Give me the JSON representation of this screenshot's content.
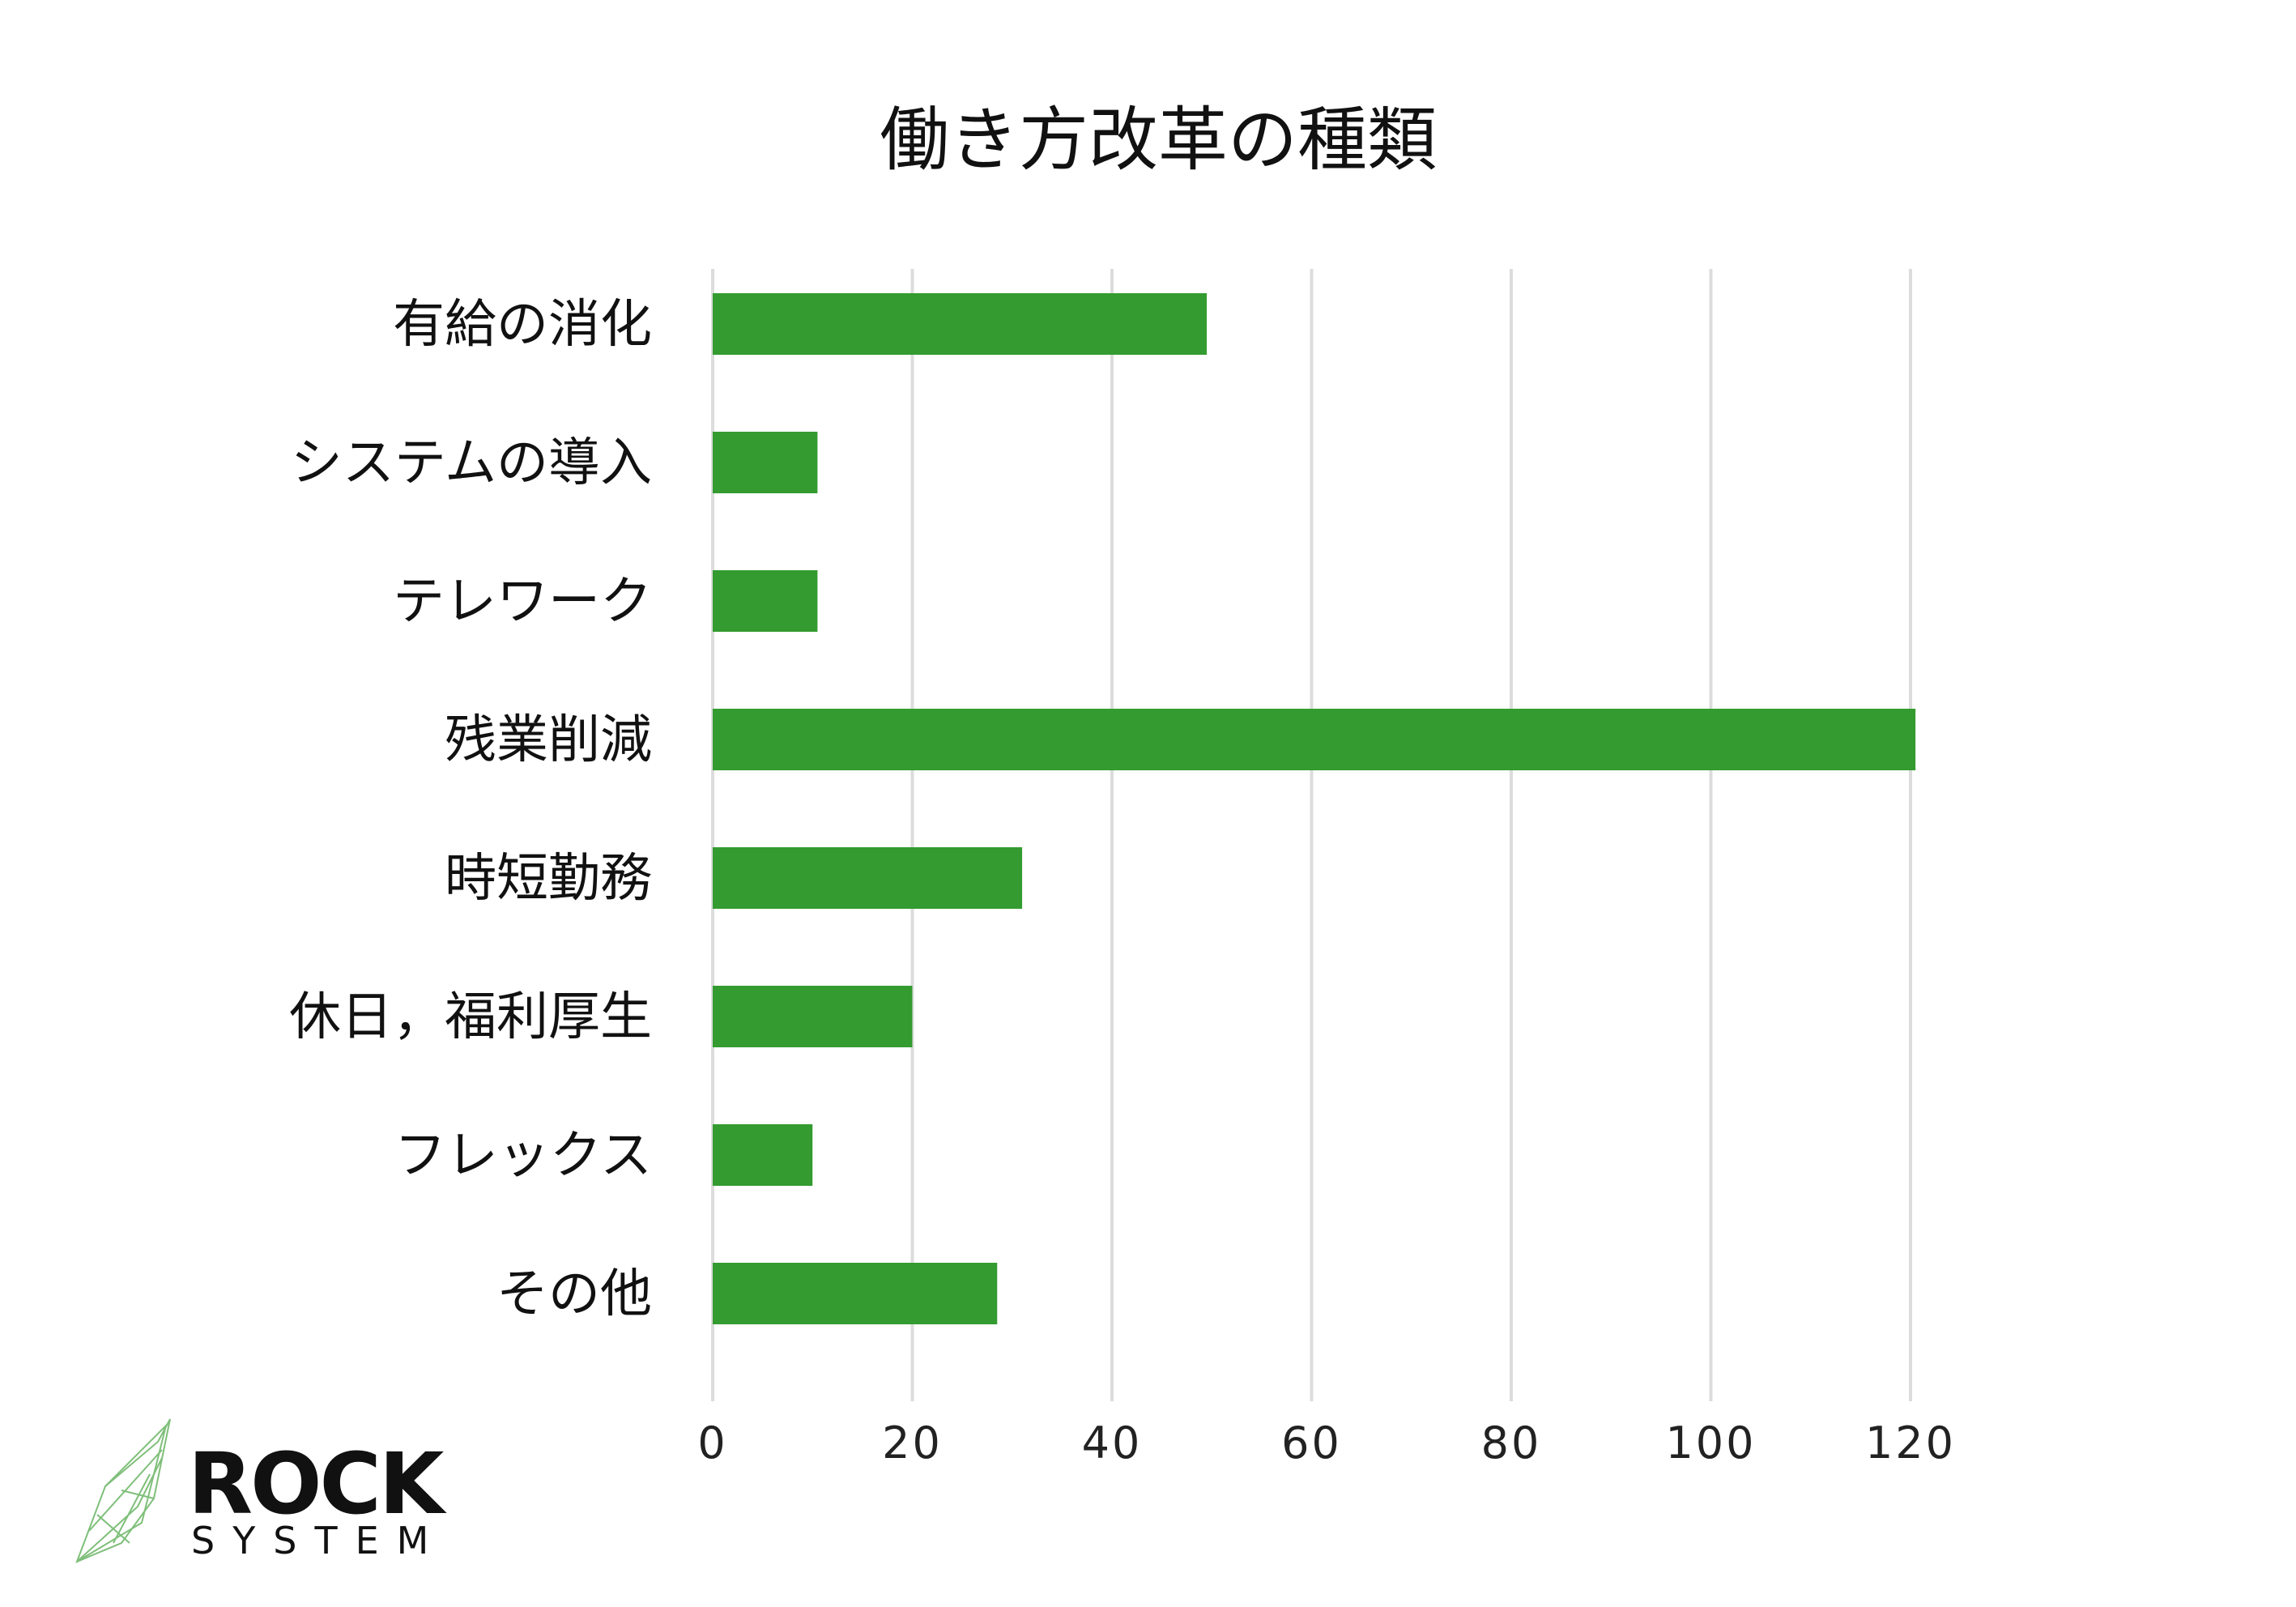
{
  "chart_data": {
    "type": "bar",
    "orientation": "horizontal",
    "title": "働き方改革の種類",
    "categories": [
      "有給の消化",
      "システムの導入",
      "テレワーク",
      "残業削減",
      "時短勤務",
      "休日，福利厚生",
      "フレックス",
      "その他"
    ],
    "values": [
      49.5,
      10.5,
      10.5,
      120.5,
      31,
      20,
      10,
      28.5
    ],
    "xlim": [
      0,
      120
    ],
    "xticks": [
      0,
      20,
      40,
      60,
      80,
      100,
      120
    ],
    "xlabel": "",
    "ylabel": "",
    "grid": "vertical",
    "legend": "none",
    "bar_color": "#339b2f",
    "grid_color": "#dcdcdc"
  },
  "logo": {
    "name": "ROCK",
    "subtitle": "SYSTEM",
    "icon": "crystal-line-icon",
    "icon_color": "#7fbf7a"
  }
}
